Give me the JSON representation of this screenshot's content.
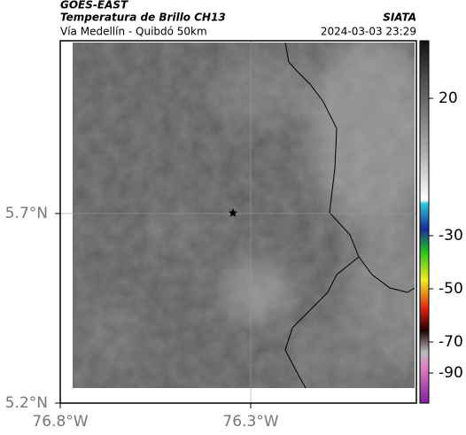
{
  "header": {
    "title": "GOES-EAST",
    "subtitle": "Temperatura de Brillo CH13",
    "caption": "Vía Medellín - Quibdó 50km",
    "source": "SIATA",
    "timestamp": "2024-03-03 23:29"
  },
  "map": {
    "lat_ticks": [
      {
        "value": 5.7,
        "label": "5.7°N"
      },
      {
        "value": 5.2,
        "label": "5.2°N"
      }
    ],
    "lon_ticks": [
      {
        "value": -76.8,
        "label": "76.8°W"
      },
      {
        "value": -76.3,
        "label": "76.3°W"
      }
    ]
  },
  "colorbar": {
    "ticks": [
      20,
      -30,
      -50,
      -70,
      -90
    ]
  }
}
